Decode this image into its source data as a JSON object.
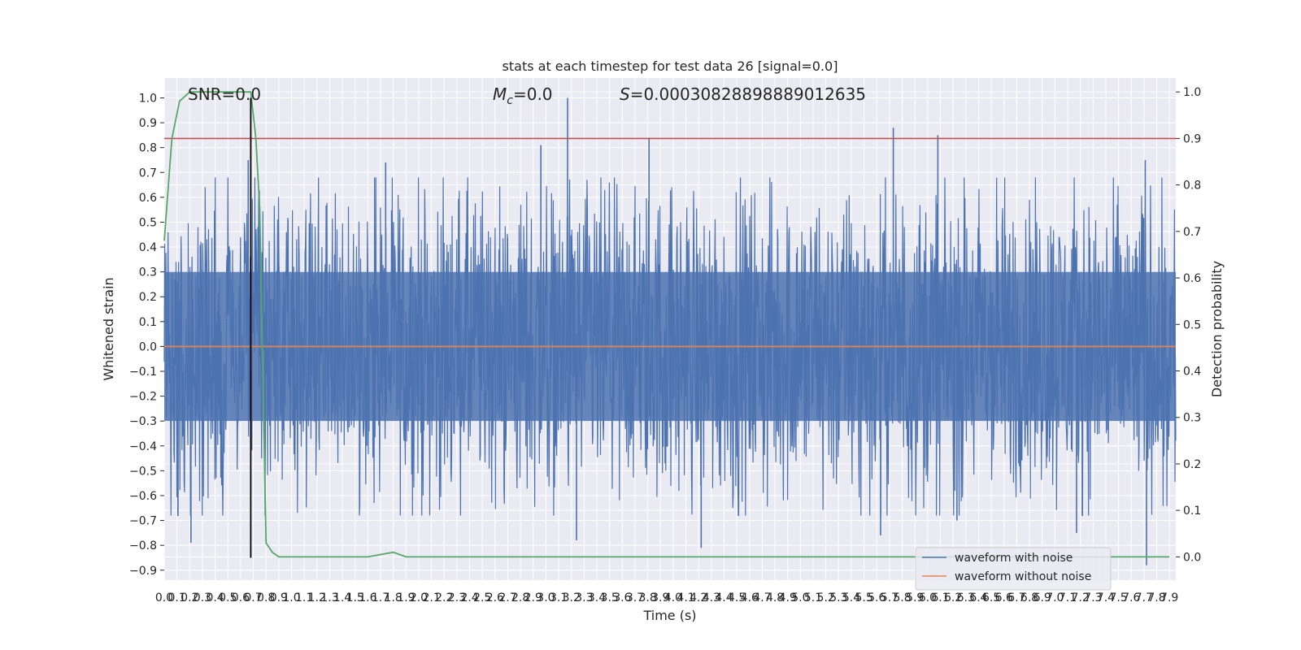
{
  "chart_data": {
    "type": "line",
    "title": "stats at each timestep for test data 26 [signal=0.0]",
    "xlabel": "Time (s)",
    "ylabel": "Whitened strain",
    "y2label": "Detection probability",
    "xlim": [
      0.0,
      7.95
    ],
    "ylim": [
      -0.94,
      1.08
    ],
    "y2lim": [
      -0.05,
      1.03
    ],
    "x_ticks": [
      0.0,
      0.1,
      0.2,
      0.3,
      0.4,
      0.5,
      0.6,
      0.7,
      0.8,
      0.9,
      1.0,
      1.1,
      1.2,
      1.3,
      1.4,
      1.5,
      1.6,
      1.7,
      1.8,
      1.9,
      2.0,
      2.1,
      2.2,
      2.3,
      2.4,
      2.5,
      2.6,
      2.7,
      2.8,
      2.9,
      3.0,
      3.1,
      3.2,
      3.3,
      3.4,
      3.5,
      3.6,
      3.7,
      3.8,
      3.9,
      4.0,
      4.1,
      4.2,
      4.3,
      4.4,
      4.5,
      4.6,
      4.7,
      4.8,
      4.9,
      5.0,
      5.1,
      5.2,
      5.3,
      5.4,
      5.5,
      5.6,
      5.7,
      5.8,
      5.9,
      6.0,
      6.1,
      6.2,
      6.3,
      6.4,
      6.5,
      6.6,
      6.7,
      6.8,
      6.9,
      7.0,
      7.1,
      7.2,
      7.3,
      7.4,
      7.5,
      7.6,
      7.7,
      7.8,
      7.9
    ],
    "y_ticks": [
      1.0,
      0.9,
      0.8,
      0.7,
      0.6,
      0.5,
      0.4,
      0.3,
      0.2,
      0.1,
      0.0,
      -0.1,
      -0.2,
      -0.3,
      -0.4,
      -0.5,
      -0.6,
      -0.7,
      -0.8,
      -0.9
    ],
    "y_tick_labels": [
      "1.0",
      "0.9",
      "0.8",
      "0.7",
      "0.6",
      "0.5",
      "0.4",
      "0.3",
      "0.2",
      "0.1",
      "0.0",
      "−0.1",
      "−0.2",
      "−0.3",
      "−0.4",
      "−0.5",
      "−0.6",
      "−0.7",
      "−0.8",
      "−0.9"
    ],
    "y2_ticks": [
      1.0,
      0.9,
      0.8,
      0.7,
      0.6,
      0.5,
      0.4,
      0.3,
      0.2,
      0.1,
      0.0
    ],
    "y2_tick_labels": [
      "1.0",
      "0.9",
      "0.8",
      "0.7",
      "0.6",
      "0.5",
      "0.4",
      "0.3",
      "0.2",
      "0.1",
      "0.0"
    ],
    "series": [
      {
        "name": "waveform with noise",
        "color": "#4c72b0",
        "note": "dense whitened noise, roughly uniform amplitude across 0–7.95 s",
        "typical_envelope": [
          -0.45,
          0.45
        ],
        "peaks": [
          {
            "x": 3.17,
            "y": 1.0
          },
          {
            "x": 5.73,
            "y": 0.88
          },
          {
            "x": 6.08,
            "y": 0.85
          },
          {
            "x": 3.81,
            "y": 0.84
          },
          {
            "x": 2.96,
            "y": 0.81
          },
          {
            "x": 0.66,
            "y": 0.75
          },
          {
            "x": 7.71,
            "y": 0.75
          },
          {
            "x": 1.74,
            "y": 0.74
          }
        ],
        "troughs": [
          {
            "x": 7.72,
            "y": -0.88
          },
          {
            "x": 4.22,
            "y": -0.81
          },
          {
            "x": 0.21,
            "y": -0.79
          },
          {
            "x": 3.24,
            "y": -0.78
          },
          {
            "x": 5.63,
            "y": -0.76
          },
          {
            "x": 7.17,
            "y": -0.75
          },
          {
            "x": 6.23,
            "y": -0.7
          }
        ]
      },
      {
        "name": "waveform without noise",
        "color": "#dd8452",
        "x": [
          0.0,
          7.95
        ],
        "y": [
          0.0,
          0.0
        ]
      },
      {
        "name": "detection probability",
        "axis": "right",
        "color": "#55a868",
        "x": [
          0.0,
          0.06,
          0.12,
          0.2,
          0.3,
          0.45,
          0.6,
          0.68,
          0.72,
          0.75,
          0.8,
          0.85,
          0.9,
          1.0,
          1.2,
          1.6,
          1.7,
          1.8,
          1.9,
          2.0,
          7.9
        ],
        "y": [
          0.68,
          0.9,
          0.98,
          1.0,
          1.0,
          1.0,
          1.0,
          1.0,
          0.9,
          0.75,
          0.03,
          0.01,
          0.0,
          0.0,
          0.0,
          0.0,
          0.005,
          0.01,
          0.0,
          0.0,
          0.0
        ]
      }
    ],
    "threshold_line": {
      "axis": "right",
      "y": 0.9,
      "color": "#c44e52"
    },
    "marker_line": {
      "x": 0.68,
      "y_from": -0.85,
      "y_to": 1.0,
      "color": "#000000"
    },
    "annotations": {
      "snr": "SNR=0.0",
      "mc": "=0.0",
      "s": "=0.00030828898889012635"
    },
    "legend": {
      "placement": "lower-right",
      "items": [
        {
          "label": "waveform with noise",
          "color": "#4c72b0"
        },
        {
          "label": "waveform without noise",
          "color": "#dd8452"
        }
      ]
    },
    "grid": true
  }
}
